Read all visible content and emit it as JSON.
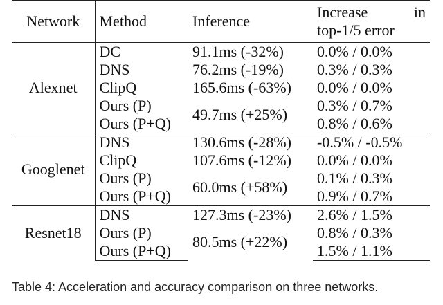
{
  "table": {
    "headers": {
      "network": "Network",
      "method": "Method",
      "inference": "Inference",
      "increase_line1_a": "Increase",
      "increase_line1_b": "in",
      "increase_line2": "top-1/5 error"
    },
    "groups": [
      {
        "network": "Alexnet",
        "rows": [
          {
            "method": "DC",
            "inference": "91.1ms (-32%)",
            "increase": "0.0% / 0.0%"
          },
          {
            "method": "DNS",
            "inference": "76.2ms (-19%)",
            "increase": "0.3% / 0.3%"
          },
          {
            "method": "ClipQ",
            "inference": "165.6ms (-63%)",
            "increase": "0.0% / 0.0%"
          },
          {
            "method": "Ours (P)",
            "inference": "49.7ms (+25%)",
            "increase": "0.3% / 0.7%"
          },
          {
            "method": "Ours (P+Q)",
            "inference": "",
            "increase": "0.8% / 0.6%"
          }
        ]
      },
      {
        "network": "Googlenet",
        "rows": [
          {
            "method": "DNS",
            "inference": "130.6ms (-28%)",
            "increase": "-0.5% / -0.5%"
          },
          {
            "method": "ClipQ",
            "inference": "107.6ms (-12%)",
            "increase": "0.0% / 0.0%"
          },
          {
            "method": "Ours (P)",
            "inference": "60.0ms (+58%)",
            "increase": "0.1% / 0.3%"
          },
          {
            "method": "Ours (P+Q)",
            "inference": "",
            "increase": "0.9% / 0.7%"
          }
        ]
      },
      {
        "network": "Resnet18",
        "rows": [
          {
            "method": "DNS",
            "inference": "127.3ms (-23%)",
            "increase": "2.6% / 1.5%"
          },
          {
            "method": "Ours (P)",
            "inference": "80.5ms (+22%)",
            "increase": "0.8% / 0.3%"
          },
          {
            "method": "Ours (P+Q)",
            "inference": "",
            "increase": "1.5% / 1.1%"
          }
        ]
      }
    ]
  },
  "caption": "Table 4: Acceleration and accuracy comparison on three networks."
}
